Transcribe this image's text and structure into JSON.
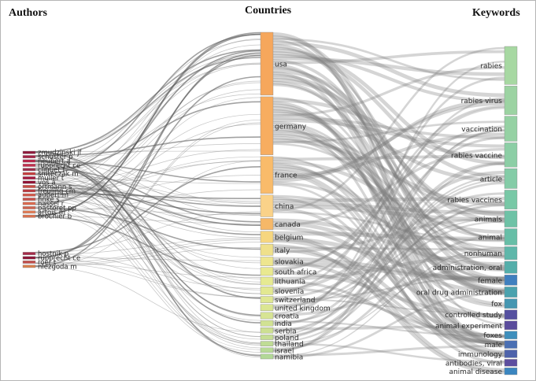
{
  "headers": {
    "authors": "Authors",
    "countries": "Countries",
    "keywords": "Keywords"
  },
  "colors": {
    "link": "#7d7d7d",
    "link_strong": "#555555",
    "node_stroke": "#8a8a8a",
    "label": "#2b2b2b"
  },
  "chart_data": {
    "type": "sankey",
    "authors": [
      {
        "name": "zmudzinski jf",
        "color": "#8e1b3c"
      },
      {
        "name": "schuster p",
        "color": "#a62346"
      },
      {
        "name": "neubert a",
        "color": "#b4274a"
      },
      {
        "name": "rupprecht ce",
        "color": "#c22f4e"
      },
      {
        "name": "cliquet f",
        "color": "#9b2c4a"
      },
      {
        "name": "smreczak m",
        "color": "#c43d3d"
      },
      {
        "name": "müller t",
        "color": "#a61a40"
      },
      {
        "name": "vos a",
        "color": "#8f1537"
      },
      {
        "name": "ortmann s",
        "color": "#c94d45"
      },
      {
        "name": "freuling cm",
        "color": "#b83a3f"
      },
      {
        "name": "aubert m",
        "color": "#d0584a"
      },
      {
        "name": "finke s",
        "color": "#c7504a"
      },
      {
        "name": "hassel r",
        "color": "#d86a50"
      },
      {
        "name": "pastoret pp",
        "color": "#cf6450"
      },
      {
        "name": "artois m",
        "color": "#e07b55"
      },
      {
        "name": "brochier b",
        "color": "#d9714f"
      },
      {
        "name": "hostnik p",
        "color": "#a52a48"
      },
      {
        "name": "rupprecht ce",
        "color": "#8c1a3a"
      },
      {
        "name": "roer t",
        "color": "#c34e4b"
      },
      {
        "name": "nlezgoda m",
        "color": "#d8804e"
      }
    ],
    "countries": [
      {
        "name": "usa",
        "weight": 78,
        "color": "#f6a75c"
      },
      {
        "name": "germany",
        "weight": 72,
        "color": "#f7ad60"
      },
      {
        "name": "france",
        "weight": 46,
        "color": "#f9bb6a"
      },
      {
        "name": "china",
        "weight": 27,
        "color": "#fad289"
      },
      {
        "name": "canada",
        "weight": 14,
        "color": "#f6b868"
      },
      {
        "name": "belgium",
        "weight": 14,
        "color": "#f6d67f"
      },
      {
        "name": "italy",
        "weight": 14,
        "color": "#efe08b"
      },
      {
        "name": "slovakia",
        "weight": 11,
        "color": "#eee68f"
      },
      {
        "name": "south africa",
        "weight": 10,
        "color": "#e9e990"
      },
      {
        "name": "lithuania",
        "weight": 10,
        "color": "#e6ea92"
      },
      {
        "name": "slovenia",
        "weight": 10,
        "color": "#e2e891"
      },
      {
        "name": "switzerland",
        "weight": 8,
        "color": "#dfe793"
      },
      {
        "name": "united kingdom",
        "weight": 8,
        "color": "#dbe692"
      },
      {
        "name": "croatia",
        "weight": 8,
        "color": "#d7e494"
      },
      {
        "name": "india",
        "weight": 7,
        "color": "#d1e293"
      },
      {
        "name": "serbia",
        "weight": 7,
        "color": "#cde092"
      },
      {
        "name": "poland",
        "weight": 6,
        "color": "#c6de94"
      },
      {
        "name": "thailand",
        "weight": 6,
        "color": "#bfdc95"
      },
      {
        "name": "israel",
        "weight": 6,
        "color": "#b8da96"
      },
      {
        "name": "namibia",
        "weight": 6,
        "color": "#b2d897"
      }
    ],
    "keywords": [
      {
        "name": "rabies",
        "weight": 44,
        "color": "#a7d8a2"
      },
      {
        "name": "rabies virus",
        "weight": 33,
        "color": "#9cd3a2"
      },
      {
        "name": "vaccination",
        "weight": 29,
        "color": "#95d1a3"
      },
      {
        "name": "rabies vaccine",
        "weight": 28,
        "color": "#8ccea5"
      },
      {
        "name": "article",
        "weight": 23,
        "color": "#84cca7"
      },
      {
        "name": "rabies vaccines",
        "weight": 22,
        "color": "#78c8a6"
      },
      {
        "name": "animals",
        "weight": 19,
        "color": "#6ec2a6"
      },
      {
        "name": "animal",
        "weight": 19,
        "color": "#67bea7"
      },
      {
        "name": "nonhuman",
        "weight": 15,
        "color": "#5eb7aa"
      },
      {
        "name": "administration, oral",
        "weight": 14,
        "color": "#54aeaa"
      },
      {
        "name": "female",
        "weight": 12,
        "color": "#3f7fbf"
      },
      {
        "name": "oral drug administration",
        "weight": 12,
        "color": "#4aa2ae"
      },
      {
        "name": "fox",
        "weight": 11,
        "color": "#4597b2"
      },
      {
        "name": "controlled study",
        "weight": 11,
        "color": "#5550a0"
      },
      {
        "name": "animal experiment",
        "weight": 10,
        "color": "#5a4c9c"
      },
      {
        "name": "foxes",
        "weight": 9,
        "color": "#3e8fbc"
      },
      {
        "name": "male",
        "weight": 9,
        "color": "#4a6fb3"
      },
      {
        "name": "immunology",
        "weight": 9,
        "color": "#4d62ab"
      },
      {
        "name": "antibodies, viral",
        "weight": 8,
        "color": "#5d4e9f"
      },
      {
        "name": "animal disease",
        "weight": 8,
        "color": "#3b86c0"
      }
    ]
  }
}
